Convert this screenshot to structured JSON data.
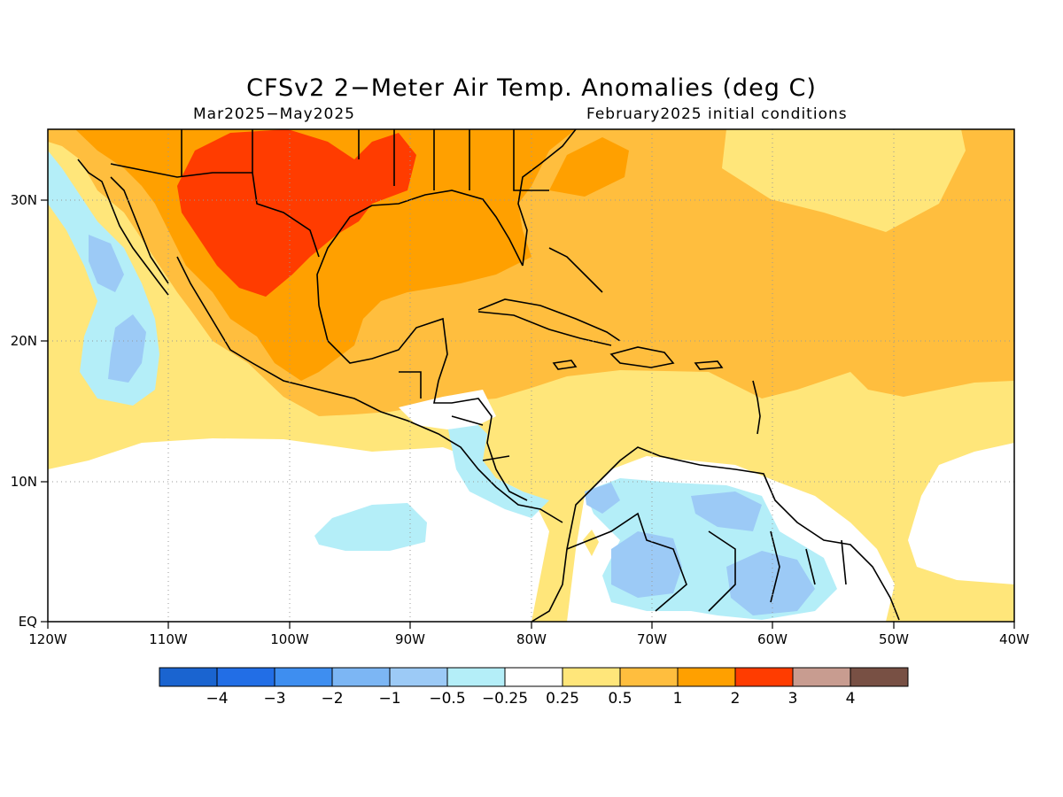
{
  "title": "CFSv2 2−Meter Air Temp. Anomalies (deg C)",
  "subtitle_left": "Mar2025−May2025",
  "subtitle_right": "February2025 initial conditions",
  "map": {
    "lon_range": [
      -120,
      -40
    ],
    "lat_range": [
      0,
      35
    ],
    "x_tick_labels": [
      "120W",
      "110W",
      "100W",
      "90W",
      "80W",
      "70W",
      "60W",
      "50W",
      "40W"
    ],
    "y_tick_labels": [
      "30N",
      "20N",
      "10N",
      "EQ"
    ],
    "gridlines": "dotted"
  },
  "colorbar": {
    "colors": [
      "#1a64d0",
      "#226ee6",
      "#3e8ef0",
      "#7cb6f4",
      "#9ccaf6",
      "#b4eef8",
      "#ffffff",
      "#ffe67a",
      "#ffbe3e",
      "#ffa000",
      "#ff3c00",
      "#c89c90",
      "#785044"
    ],
    "labels": [
      "−4",
      "−3",
      "−2",
      "−1",
      "−0.5",
      "−0.25",
      "0.25",
      "0.5",
      "1",
      "2",
      "3",
      "4"
    ]
  },
  "palette": {
    "neg2": "#7cb6f4",
    "neg1": "#9ccaf6",
    "neg05": "#b4eef8",
    "pos025": "#ffe67a",
    "pos05": "#ffbe3e",
    "pos1": "#ffa000",
    "pos2": "#ff3c00"
  }
}
